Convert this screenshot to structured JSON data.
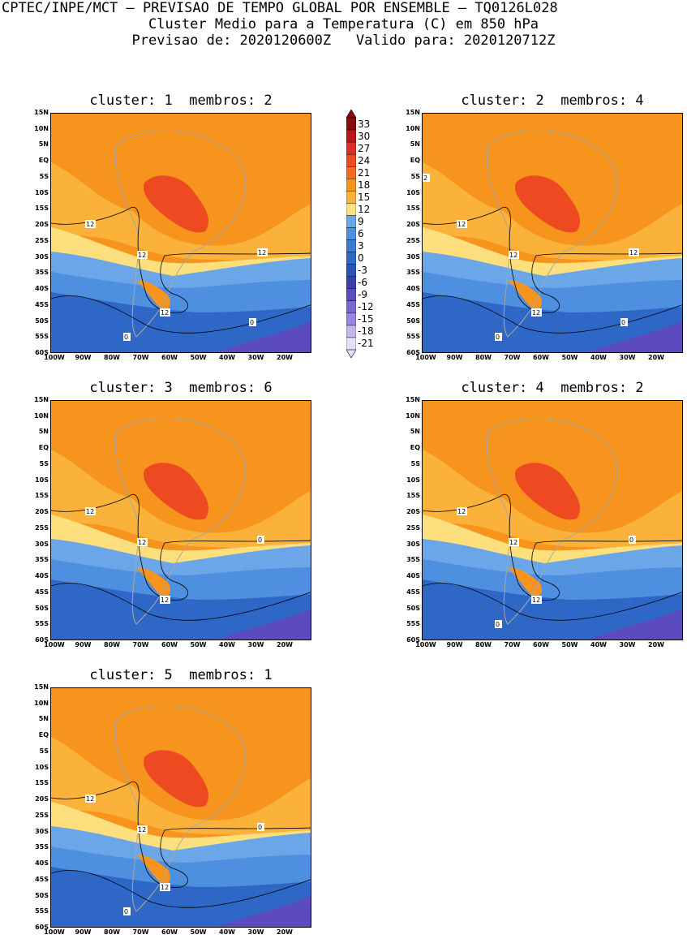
{
  "header": {
    "title": "CPTEC/INPE/MCT – PREVISAO DE TEMPO GLOBAL POR ENSEMBLE – TQ0126L028",
    "subtitle": "Cluster Medio para a Temperatura (C) em 850 hPa",
    "forecast_line": "Previsao de: 2020120600Z   Valido para: 2020120712Z"
  },
  "lat_ticks": [
    "15N",
    "10N",
    "5N",
    "EQ",
    "5S",
    "10S",
    "15S",
    "20S",
    "25S",
    "30S",
    "35S",
    "40S",
    "45S",
    "50S",
    "55S",
    "60S"
  ],
  "lon_ticks": [
    "100W",
    "90W",
    "80W",
    "70W",
    "60W",
    "50W",
    "40W",
    "30W",
    "20W"
  ],
  "colorbar": {
    "labels": [
      "33",
      "30",
      "27",
      "24",
      "21",
      "18",
      "15",
      "12",
      "9",
      "6",
      "3",
      "0",
      "-3",
      "-6",
      "-9",
      "-12",
      "-15",
      "-18",
      "-21"
    ],
    "colors": [
      "#8b0a0a",
      "#b8141a",
      "#d9312a",
      "#ee4a22",
      "#f46b1e",
      "#f7941d",
      "#fbb23a",
      "#fde07d",
      "#6aa6e8",
      "#4e8fdf",
      "#3a7bd5",
      "#2f67c7",
      "#2d53b8",
      "#3b3fa8",
      "#5b4bbf",
      "#7c66d1",
      "#9b86dd",
      "#c4b5ec",
      "#e6e0f6"
    ]
  },
  "panels": [
    {
      "title": "cluster: 1  membros: 2",
      "contour_labels": [
        "12",
        "12",
        "12",
        "12",
        "0",
        "0"
      ]
    },
    {
      "title": "cluster: 2  membros: 4",
      "contour_labels": [
        "12",
        "12",
        "12",
        "12",
        "0",
        "0",
        "2"
      ]
    },
    {
      "title": "cluster: 3  membros: 6",
      "contour_labels": [
        "12",
        "12",
        "12",
        "0"
      ]
    },
    {
      "title": "cluster: 4  membros: 2",
      "contour_labels": [
        "12",
        "12",
        "12",
        "0",
        "0"
      ]
    },
    {
      "title": "cluster: 5  membros: 1",
      "contour_labels": [
        "12",
        "12",
        "12",
        "0",
        "0"
      ]
    }
  ]
}
